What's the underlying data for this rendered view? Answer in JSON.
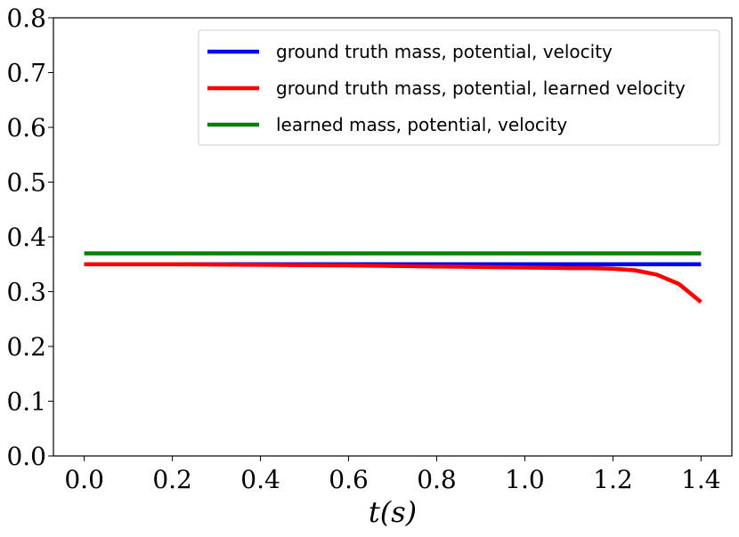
{
  "chart_data": {
    "type": "line",
    "title": "",
    "xlabel": "t(s)",
    "ylabel": "",
    "xlim": [
      -0.07,
      1.47
    ],
    "ylim": [
      0.0,
      0.8
    ],
    "xticks": [
      0.0,
      0.2,
      0.4,
      0.6,
      0.8,
      1.0,
      1.2,
      1.4
    ],
    "xtick_labels": [
      "0.0",
      "0.2",
      "0.4",
      "0.6",
      "0.8",
      "1.0",
      "1.2",
      "1.4"
    ],
    "yticks": [
      0.0,
      0.1,
      0.2,
      0.3,
      0.4,
      0.5,
      0.6,
      0.7,
      0.8
    ],
    "ytick_labels": [
      "0.0",
      "0.1",
      "0.2",
      "0.3",
      "0.4",
      "0.5",
      "0.6",
      "0.7",
      "0.8"
    ],
    "grid": false,
    "legend_position": "top-right",
    "series": [
      {
        "name": "ground truth mass, potential, velocity",
        "color": "#0000ff",
        "x": [
          0.0,
          1.4
        ],
        "y": [
          0.35,
          0.35
        ]
      },
      {
        "name": "ground truth mass, potential, learned velocity",
        "color": "#ff0000",
        "x": [
          0.0,
          0.2,
          0.4,
          0.6,
          0.8,
          1.0,
          1.1,
          1.15,
          1.2,
          1.25,
          1.3,
          1.35,
          1.4
        ],
        "y": [
          0.35,
          0.35,
          0.349,
          0.348,
          0.346,
          0.344,
          0.343,
          0.343,
          0.342,
          0.339,
          0.331,
          0.314,
          0.281
        ]
      },
      {
        "name": "learned mass, potential, velocity",
        "color": "#008000",
        "x": [
          0.0,
          1.4
        ],
        "y": [
          0.37,
          0.37
        ]
      }
    ]
  }
}
